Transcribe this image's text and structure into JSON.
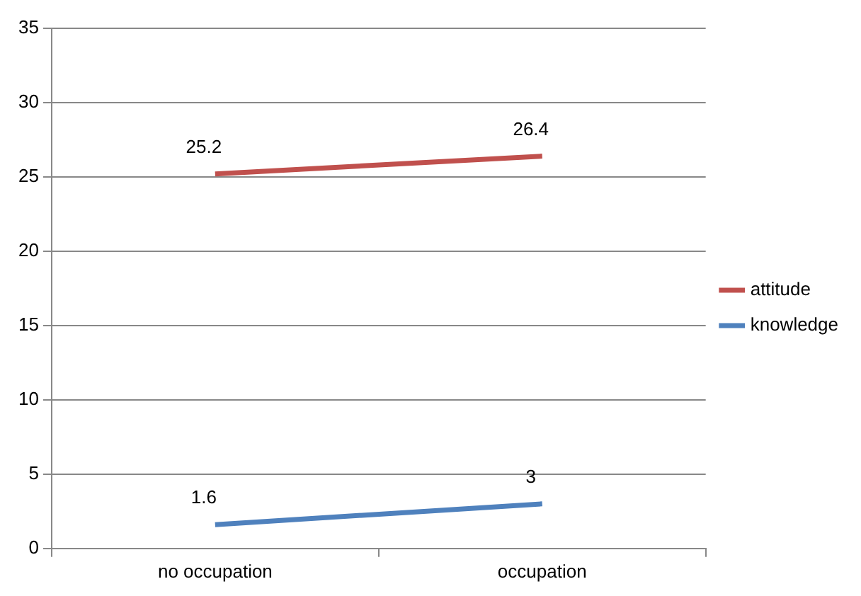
{
  "chart_data": {
    "type": "line",
    "categories": [
      "no occupation",
      "occupation"
    ],
    "series": [
      {
        "name": "attitude",
        "color": "#c0504d",
        "values": [
          25.2,
          26.4
        ]
      },
      {
        "name": "knowledge",
        "color": "#4f81bd",
        "values": [
          1.6,
          3
        ]
      }
    ],
    "ylim": [
      0,
      35
    ],
    "yticks": [
      0,
      5,
      10,
      15,
      20,
      25,
      30,
      35
    ],
    "grid": "y",
    "legend": "right",
    "data_labels": true,
    "marker": "none"
  }
}
